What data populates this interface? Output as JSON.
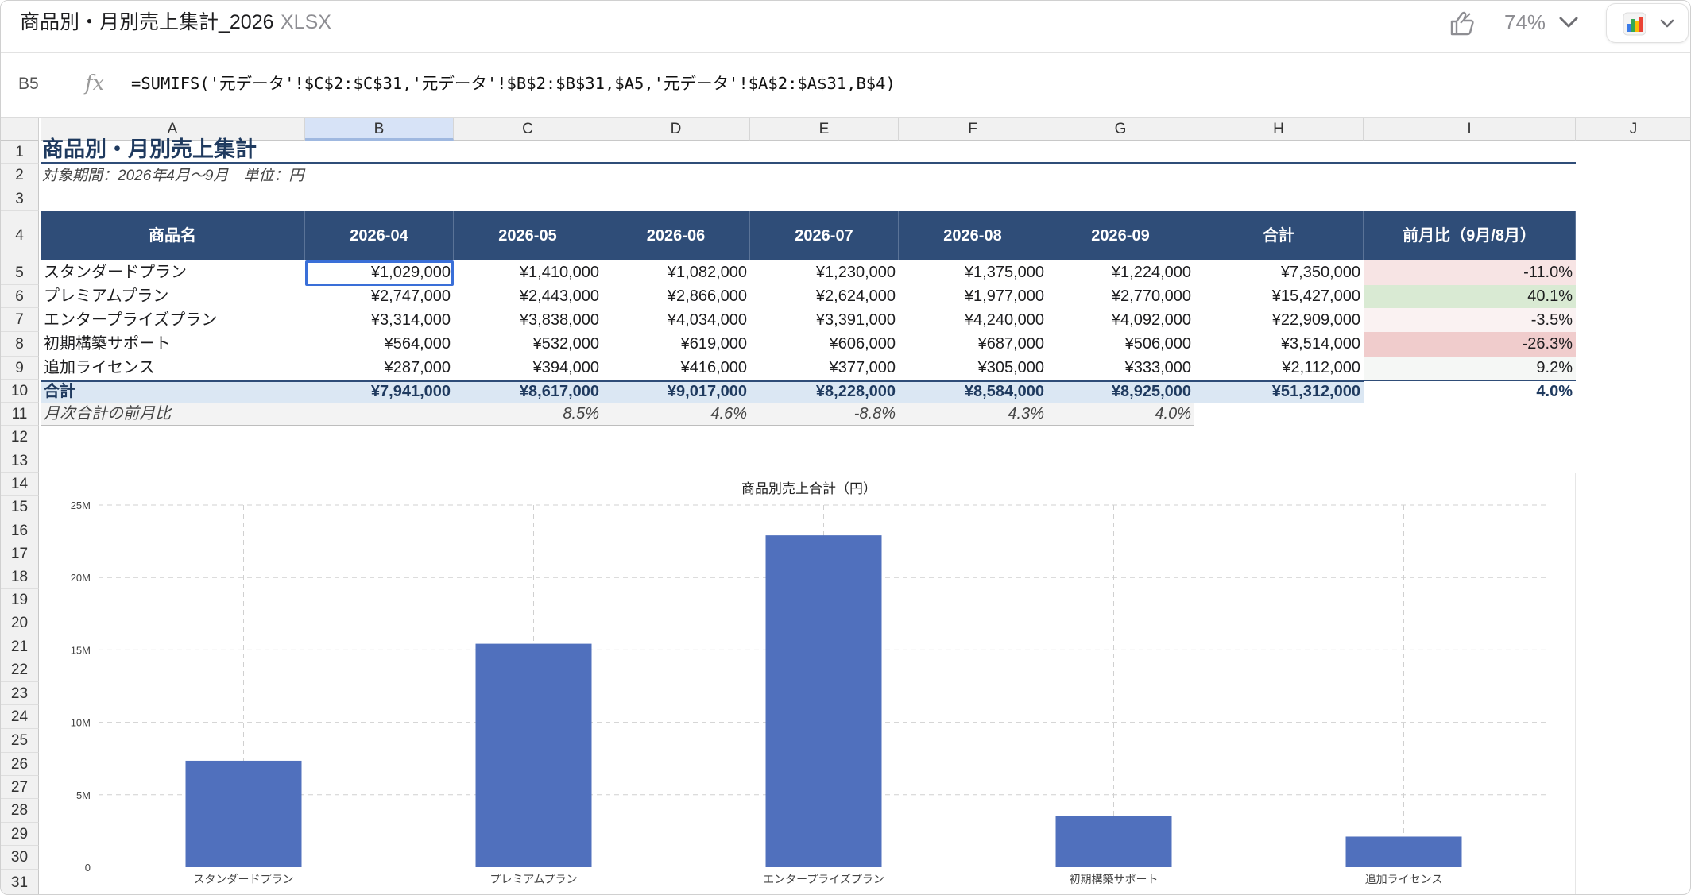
{
  "window": {
    "doc_title": "商品別・月別売上集計_2026",
    "doc_type": "XLSX",
    "zoom": "74%",
    "thumb_icon": "thumbs-icon",
    "chart_icon": "bar-chart-icon"
  },
  "formula_bar": {
    "cell_ref": "B5",
    "fx": "fx",
    "formula": "=SUMIFS('元データ'!$C$2:$C$31,'元データ'!$B$2:$B$31,$A5,'元データ'!$A$2:$A$31,B$4)"
  },
  "columns": [
    "A",
    "B",
    "C",
    "D",
    "E",
    "F",
    "G",
    "H",
    "I",
    "J"
  ],
  "rows": [
    "1",
    "2",
    "3",
    "4",
    "5",
    "6",
    "7",
    "8",
    "9",
    "10",
    "11",
    "12",
    "13",
    "14",
    "15",
    "16",
    "17",
    "18",
    "19",
    "20",
    "21",
    "22",
    "23",
    "24",
    "25",
    "26",
    "27",
    "28",
    "29",
    "30",
    "31"
  ],
  "sheet": {
    "title": "商品別・月別売上集計",
    "subtitle": "対象期間：2026年4月〜9月　単位：円",
    "headers": [
      "商品名",
      "2026-04",
      "2026-05",
      "2026-06",
      "2026-07",
      "2026-08",
      "2026-09",
      "合計",
      "前月比（9月/8月）"
    ],
    "data_rows": [
      {
        "name": "スタンダードプラン",
        "values": [
          "¥1,029,000",
          "¥1,410,000",
          "¥1,082,000",
          "¥1,230,000",
          "¥1,375,000",
          "¥1,224,000"
        ],
        "total": "¥7,350,000",
        "mom": "-11.0%"
      },
      {
        "name": "プレミアムプラン",
        "values": [
          "¥2,747,000",
          "¥2,443,000",
          "¥2,866,000",
          "¥2,624,000",
          "¥1,977,000",
          "¥2,770,000"
        ],
        "total": "¥15,427,000",
        "mom": "40.1%"
      },
      {
        "name": "エンタープライズプラン",
        "values": [
          "¥3,314,000",
          "¥3,838,000",
          "¥4,034,000",
          "¥3,391,000",
          "¥4,240,000",
          "¥4,092,000"
        ],
        "total": "¥22,909,000",
        "mom": "-3.5%"
      },
      {
        "name": "初期構築サポート",
        "values": [
          "¥564,000",
          "¥532,000",
          "¥619,000",
          "¥606,000",
          "¥687,000",
          "¥506,000"
        ],
        "total": "¥3,514,000",
        "mom": "-26.3%"
      },
      {
        "name": "追加ライセンス",
        "values": [
          "¥287,000",
          "¥394,000",
          "¥416,000",
          "¥377,000",
          "¥305,000",
          "¥333,000"
        ],
        "total": "¥2,112,000",
        "mom": "9.2%"
      }
    ],
    "mom_colors": [
      "#f7e4e4",
      "#d9ead3",
      "#faf2f2",
      "#f0cccc",
      "#f5f7f5"
    ],
    "total_row": {
      "label": "合計",
      "values": [
        "¥7,941,000",
        "¥8,617,000",
        "¥9,017,000",
        "¥8,228,000",
        "¥8,584,000",
        "¥8,925,000"
      ],
      "total": "¥51,312,000",
      "mom": "4.0%"
    },
    "mom_row": {
      "label": "月次合計の前月比",
      "values": [
        "8.5%",
        "4.6%",
        "-8.8%",
        "4.3%",
        "4.0%"
      ]
    }
  },
  "chart_data": {
    "type": "bar",
    "title": "商品別売上合計（円）",
    "categories": [
      "スタンダードプラン",
      "プレミアムプラン",
      "エンタープライズプラン",
      "初期構築サポート",
      "追加ライセンス"
    ],
    "values": [
      7350000,
      15427000,
      22909000,
      3514000,
      2112000
    ],
    "ylim": [
      0,
      25000000
    ],
    "yticks": [
      0,
      5000000,
      10000000,
      15000000,
      20000000,
      25000000
    ],
    "ytick_labels": [
      "0",
      "5M",
      "10M",
      "15M",
      "20M",
      "25M"
    ],
    "bar_color": "#5070bd",
    "grid": true,
    "legend": "none"
  }
}
